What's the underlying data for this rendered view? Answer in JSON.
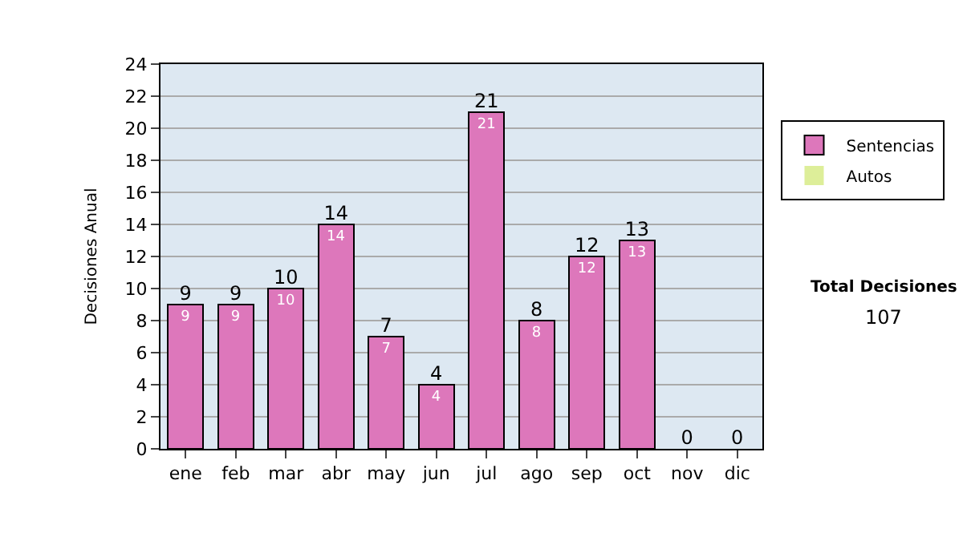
{
  "chart_data": {
    "type": "bar",
    "stacked": true,
    "ylabel": "Decisiones Anual",
    "categories": [
      "ene",
      "feb",
      "mar",
      "abr",
      "may",
      "jun",
      "jul",
      "ago",
      "sep",
      "oct",
      "nov",
      "dic"
    ],
    "series": [
      {
        "name": "Sentencias",
        "color": "#dd77bb",
        "values": [
          9,
          9,
          10,
          14,
          7,
          4,
          21,
          8,
          12,
          13,
          0,
          0
        ],
        "value_labels": [
          "9",
          "9",
          "10",
          "14",
          "7",
          "4",
          "21",
          "8",
          "12",
          "13",
          null,
          null
        ]
      },
      {
        "name": "Autos",
        "color": "#ddee99",
        "values": [
          0,
          0,
          0,
          0,
          0,
          0,
          0,
          0,
          0,
          0,
          0,
          0
        ]
      }
    ],
    "totals": [
      "9",
      "9",
      "10",
      "14",
      "7",
      "4",
      "21",
      "8",
      "12",
      "13",
      "0",
      "0"
    ],
    "ylim": [
      0,
      24
    ],
    "yticks": [
      0,
      2,
      4,
      6,
      8,
      10,
      12,
      14,
      16,
      18,
      20,
      22,
      24
    ],
    "grid": "y",
    "legend": "right",
    "annotations": [
      "Total Decisiones",
      "107"
    ]
  }
}
